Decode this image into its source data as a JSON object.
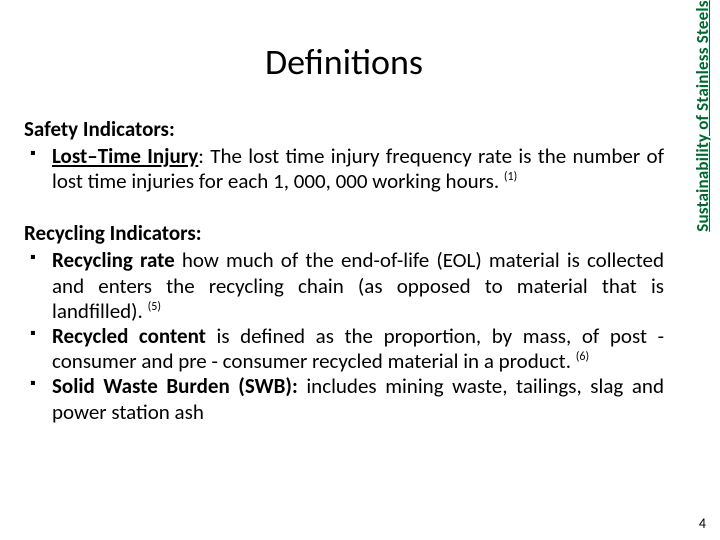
{
  "colors": {
    "background": "#ffffff",
    "text": "#000000",
    "side_label": "#00682f"
  },
  "typography": {
    "title_fontsize": 36,
    "body_fontsize": 21,
    "sup_fontsize": 12,
    "side_label_fontsize": 17,
    "page_number_fontsize": 14,
    "font_family": "Calibri"
  },
  "title": "Definitions",
  "side_label": "Sustainability of Stainless Steels",
  "page_number": "4",
  "sections": [
    {
      "heading": "Safety Indicators:",
      "items": [
        {
          "term": "Lost–Time Injury",
          "term_underline": true,
          "colon": ": ",
          "body": "The lost time injury frequency rate is the number of lost time injuries for each 1, 000, 000 working hours.",
          "sup": "(1)"
        }
      ]
    },
    {
      "heading": "Recycling Indicators:",
      "items": [
        {
          "term": "Recycling rate",
          "term_underline": false,
          "colon": " ",
          "body": "how much of the end-of-life (EOL) material is collected and enters the recycling  chain (as opposed to material that is landfilled).",
          "sup": "(5)"
        },
        {
          "term": "Recycled content",
          "term_underline": false,
          "colon": " ",
          "body": "is defined as the proportion, by mass, of post - consumer and pre - consumer recycled material in a product.",
          "sup": "(6)"
        },
        {
          "term": "Solid Waste Burden (SWB):",
          "term_underline": false,
          "colon": " ",
          "body": "includes mining waste, tailings, slag and power station ash",
          "sup": ""
        }
      ]
    }
  ]
}
